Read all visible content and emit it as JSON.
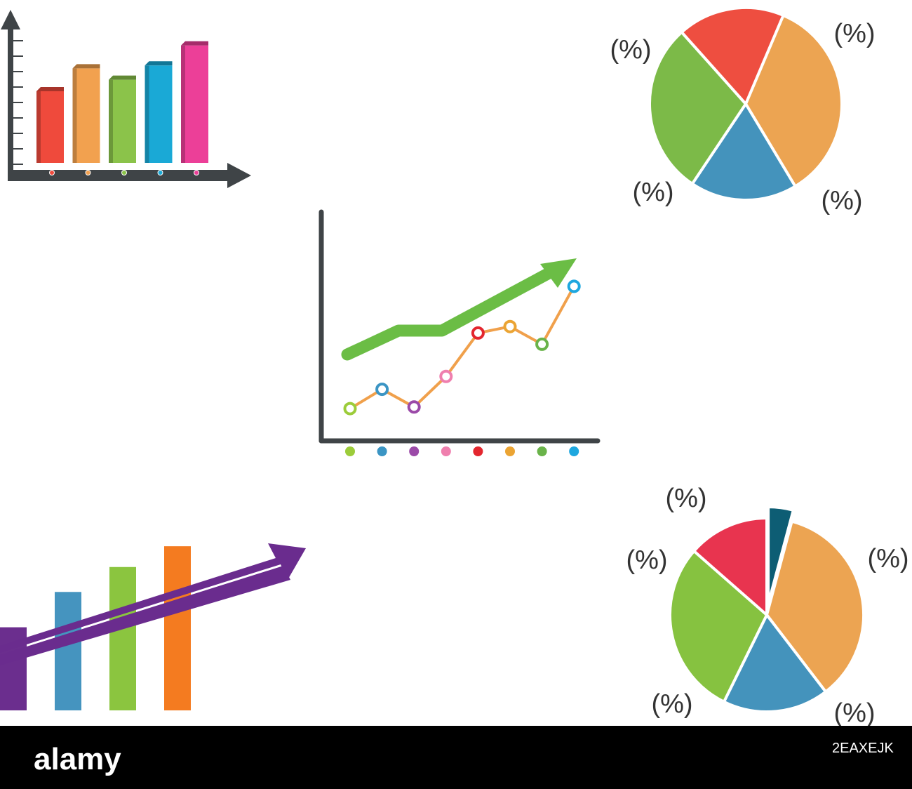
{
  "chart_data": [
    {
      "type": "bar",
      "title": "",
      "categories": [
        "",
        "",
        "",
        "",
        ""
      ],
      "values": [
        5,
        6.6,
        5.8,
        6.8,
        8.2
      ],
      "ylim": [
        0,
        10
      ],
      "colors": [
        "#ef4a3c",
        "#f2a14f",
        "#8bc34a",
        "#1aa9d6",
        "#ec3f98"
      ],
      "dot_colors": [
        "#ef4a3c",
        "#f2a14f",
        "#8bc34a",
        "#1aa9d6",
        "#ec3f98"
      ],
      "grid": false
    },
    {
      "type": "pie",
      "title": "",
      "slices": [
        {
          "label": "(%)",
          "value": 35,
          "color": "#eca452"
        },
        {
          "label": "(%)",
          "value": 18,
          "color": "#4493bc"
        },
        {
          "label": "(%)",
          "value": 29,
          "color": "#7cba48"
        },
        {
          "label": "(%)",
          "value": 18,
          "color": "#ee4e40"
        }
      ]
    },
    {
      "type": "line",
      "title": "",
      "x": [
        1,
        2,
        3,
        4,
        5,
        6,
        7,
        8
      ],
      "values": [
        1,
        2.2,
        1.1,
        3,
        5.7,
        6.1,
        5,
        8.6
      ],
      "ylim": [
        0,
        12
      ],
      "point_colors": [
        "#9ccc3a",
        "#3b95c4",
        "#9b4aa8",
        "#ef7fae",
        "#e3262e",
        "#eba433",
        "#6ab34a",
        "#1ea7df"
      ],
      "line_color": "#f0a04b",
      "trend_arrow_color": "#6bbd45",
      "grid": false
    },
    {
      "type": "bar",
      "title": "",
      "categories": [
        "",
        "",
        "",
        ""
      ],
      "values": [
        4,
        5.7,
        6.9,
        7.9
      ],
      "ylim": [
        0,
        10
      ],
      "colors": [
        "#6b2e8e",
        "#4594bf",
        "#8bc53f",
        "#f47b20"
      ],
      "trend_arrow_color": "#6a2c8e",
      "grid": false
    },
    {
      "type": "pie",
      "title": "",
      "slices": [
        {
          "label": "(%)",
          "value": 34,
          "color": "#eca452"
        },
        {
          "label": "(%)",
          "value": 17,
          "color": "#4493bc"
        },
        {
          "label": "(%)",
          "value": 28,
          "color": "#86c240"
        },
        {
          "label": "(%)",
          "value": 13,
          "color": "#e8344f"
        },
        {
          "label": "(%)",
          "value": 4,
          "color": "#0d5d74"
        }
      ]
    }
  ],
  "watermark": {
    "brand": "alamy",
    "code": "2EAXEJK",
    "bar_color": "#000000"
  }
}
